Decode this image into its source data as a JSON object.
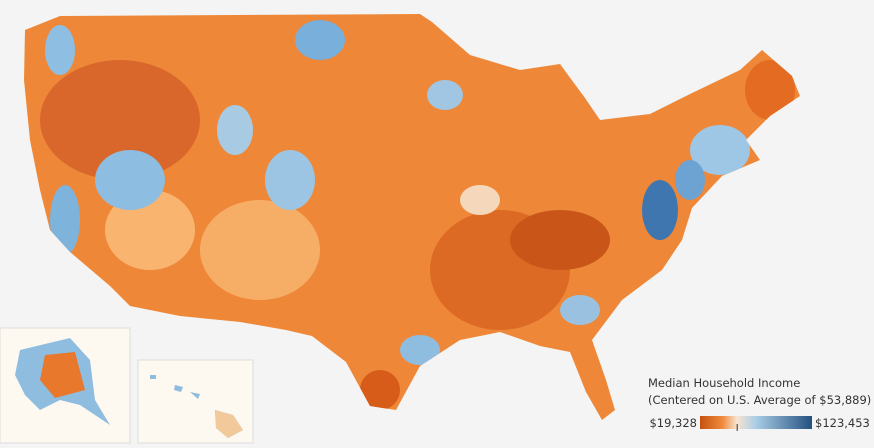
{
  "legend": {
    "title": "Median Household Income",
    "subtitle": "(Centered on U.S. Average of $53,889)",
    "min": {
      "value": 19328,
      "label": "$19,328"
    },
    "max": {
      "value": 123453,
      "label": "$123,453"
    },
    "center": 53889
  }
}
